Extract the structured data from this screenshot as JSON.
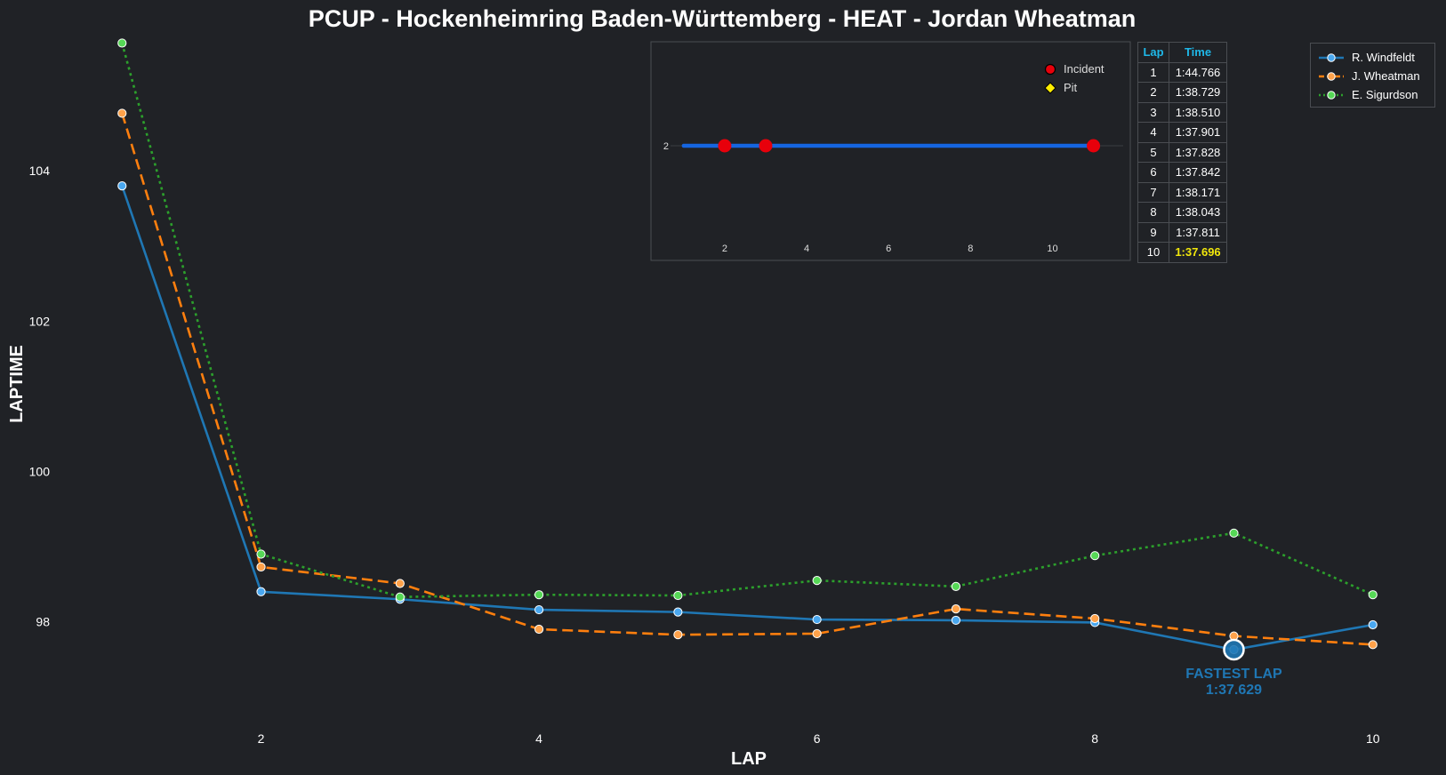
{
  "chart_data": {
    "type": "line",
    "title": "PCUP - Hockenheimring Baden-Württemberg - HEAT - Jordan Wheatman",
    "xlabel": "LAP",
    "ylabel": "LAPTIME",
    "xlim": [
      0.8,
      10.2
    ],
    "ylim": [
      96.6,
      105.8
    ],
    "xticks": [
      2,
      4,
      6,
      8,
      10
    ],
    "yticks": [
      98,
      100,
      102,
      104
    ],
    "grid": false,
    "legend_position": "top-right",
    "x": [
      1,
      2,
      3,
      4,
      5,
      6,
      7,
      8,
      9,
      10
    ],
    "series": [
      {
        "name": "R. Windfeldt",
        "color": "#1f77b4",
        "style": "solid",
        "values": [
          103.8,
          98.4,
          98.3,
          98.16,
          98.13,
          98.03,
          98.02,
          97.99,
          97.629,
          97.96
        ]
      },
      {
        "name": "J. Wheatman",
        "color": "#ff7f0e",
        "style": "dashed",
        "values": [
          104.766,
          98.729,
          98.51,
          97.901,
          97.828,
          97.842,
          98.171,
          98.043,
          97.811,
          97.696
        ]
      },
      {
        "name": "E. Sigurdson",
        "color": "#2ca02c",
        "style": "dotted",
        "values": [
          105.7,
          98.9,
          98.33,
          98.36,
          98.35,
          98.55,
          98.47,
          98.88,
          99.18,
          98.36
        ]
      }
    ],
    "fastest_lap": {
      "label": "FASTEST LAP",
      "time": "1:37.629",
      "lap": 9,
      "value": 97.629,
      "color": "#1f77b4"
    },
    "inset": {
      "type": "timeline",
      "xticks": [
        2,
        4,
        6,
        8,
        10
      ],
      "xlim": [
        0.2,
        11.9
      ],
      "row_label": "2",
      "line_start": 1,
      "line_end": 11,
      "line_color": "#1565e0",
      "incidents": [
        2,
        3,
        11
      ],
      "pits": [],
      "legend": [
        {
          "label": "Incident",
          "color": "#e8000b",
          "marker": "circle"
        },
        {
          "label": "Pit",
          "color": "#ffee00",
          "marker": "diamond"
        }
      ]
    },
    "table": {
      "headers": [
        "Lap",
        "Time"
      ],
      "rows": [
        [
          "1",
          "1:44.766"
        ],
        [
          "2",
          "1:38.729"
        ],
        [
          "3",
          "1:38.510"
        ],
        [
          "4",
          "1:37.901"
        ],
        [
          "5",
          "1:37.828"
        ],
        [
          "6",
          "1:37.842"
        ],
        [
          "7",
          "1:38.171"
        ],
        [
          "8",
          "1:38.043"
        ],
        [
          "9",
          "1:37.811"
        ],
        [
          "10",
          "1:37.696"
        ]
      ],
      "best_row": 9,
      "header_color": "#1fb8e8",
      "best_color": "#f1e70c"
    }
  }
}
